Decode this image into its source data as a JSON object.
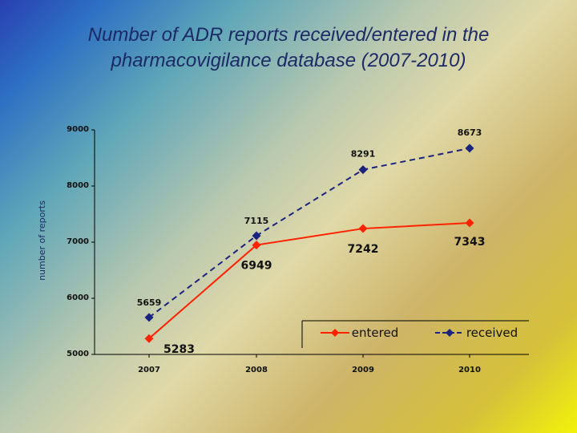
{
  "title_lines": [
    "Number of ADR reports received/entered in the",
    "pharmacovigilance database (2007-2010)"
  ],
  "chart_data": {
    "type": "line",
    "categories": [
      "2007",
      "2008",
      "2009",
      "2010"
    ],
    "series": [
      {
        "name": "entered",
        "values": [
          5283,
          6949,
          7242,
          7343
        ],
        "labels": [
          "5283",
          "6949",
          "7242",
          "7343"
        ],
        "color": "#ff2200",
        "line_style": "solid",
        "marker": "diamond"
      },
      {
        "name": "received",
        "values": [
          5659,
          7115,
          8291,
          8673
        ],
        "labels": [
          "5659",
          "7115",
          "8291",
          "8673"
        ],
        "color": "#1a237e",
        "line_style": "dashed",
        "marker": "diamond"
      }
    ],
    "ylabel": "number of reports",
    "yticks": [
      "5000",
      "6000",
      "7000",
      "8000",
      "9000"
    ],
    "ylim": [
      5000,
      9000
    ],
    "grid": false,
    "legend_position": "bottom-right"
  }
}
